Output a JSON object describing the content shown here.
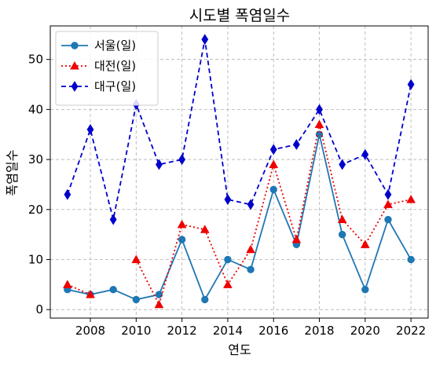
{
  "chart_data": {
    "type": "line",
    "title": "시도별 폭염일수",
    "xlabel": "연도",
    "ylabel": "폭염일수",
    "x": [
      2007,
      2008,
      2009,
      2010,
      2011,
      2012,
      2013,
      2014,
      2015,
      2016,
      2017,
      2018,
      2019,
      2020,
      2021,
      2022
    ],
    "xlim": [
      2006.25,
      2022.75
    ],
    "ylim": [
      -1.7,
      56.7
    ],
    "x_ticks": [
      2008,
      2010,
      2012,
      2014,
      2016,
      2018,
      2020,
      2022
    ],
    "y_ticks": [
      0,
      10,
      20,
      30,
      40,
      50
    ],
    "grid": true,
    "grid_style": "dashed",
    "legend_position": "upper-left",
    "series": [
      {
        "name": "서울(일)",
        "color": "#1f77b4",
        "line_style": "solid",
        "marker": "circle",
        "x": [
          2007,
          2008,
          2009,
          2010,
          2011,
          2012,
          2013,
          2014,
          2015,
          2016,
          2017,
          2018,
          2019,
          2020,
          2021,
          2022
        ],
        "values": [
          4,
          3,
          4,
          2,
          3,
          14,
          2,
          10,
          8,
          24,
          13,
          35,
          15,
          4,
          18,
          10
        ]
      },
      {
        "name": "대전(일)",
        "color": "#ee0000",
        "line_style": "dotted",
        "marker": "triangle",
        "x": [
          2007,
          2008,
          2010,
          2011,
          2012,
          2013,
          2014,
          2015,
          2016,
          2017,
          2018,
          2019,
          2020,
          2021,
          2022
        ],
        "values": [
          5,
          3,
          10,
          1,
          17,
          16,
          5,
          12,
          29,
          14,
          37,
          18,
          13,
          21,
          22
        ],
        "segments": [
          [
            0,
            1
          ],
          [
            2,
            14
          ]
        ]
      },
      {
        "name": "대구(일)",
        "color": "#0000cc",
        "line_style": "dashed",
        "marker": "diamond",
        "x": [
          2007,
          2008,
          2009,
          2010,
          2011,
          2012,
          2013,
          2014,
          2015,
          2016,
          2017,
          2018,
          2019,
          2020,
          2021,
          2022
        ],
        "values": [
          23,
          36,
          18,
          41,
          29,
          30,
          54,
          22,
          21,
          32,
          33,
          40,
          29,
          31,
          23,
          45
        ]
      }
    ]
  }
}
